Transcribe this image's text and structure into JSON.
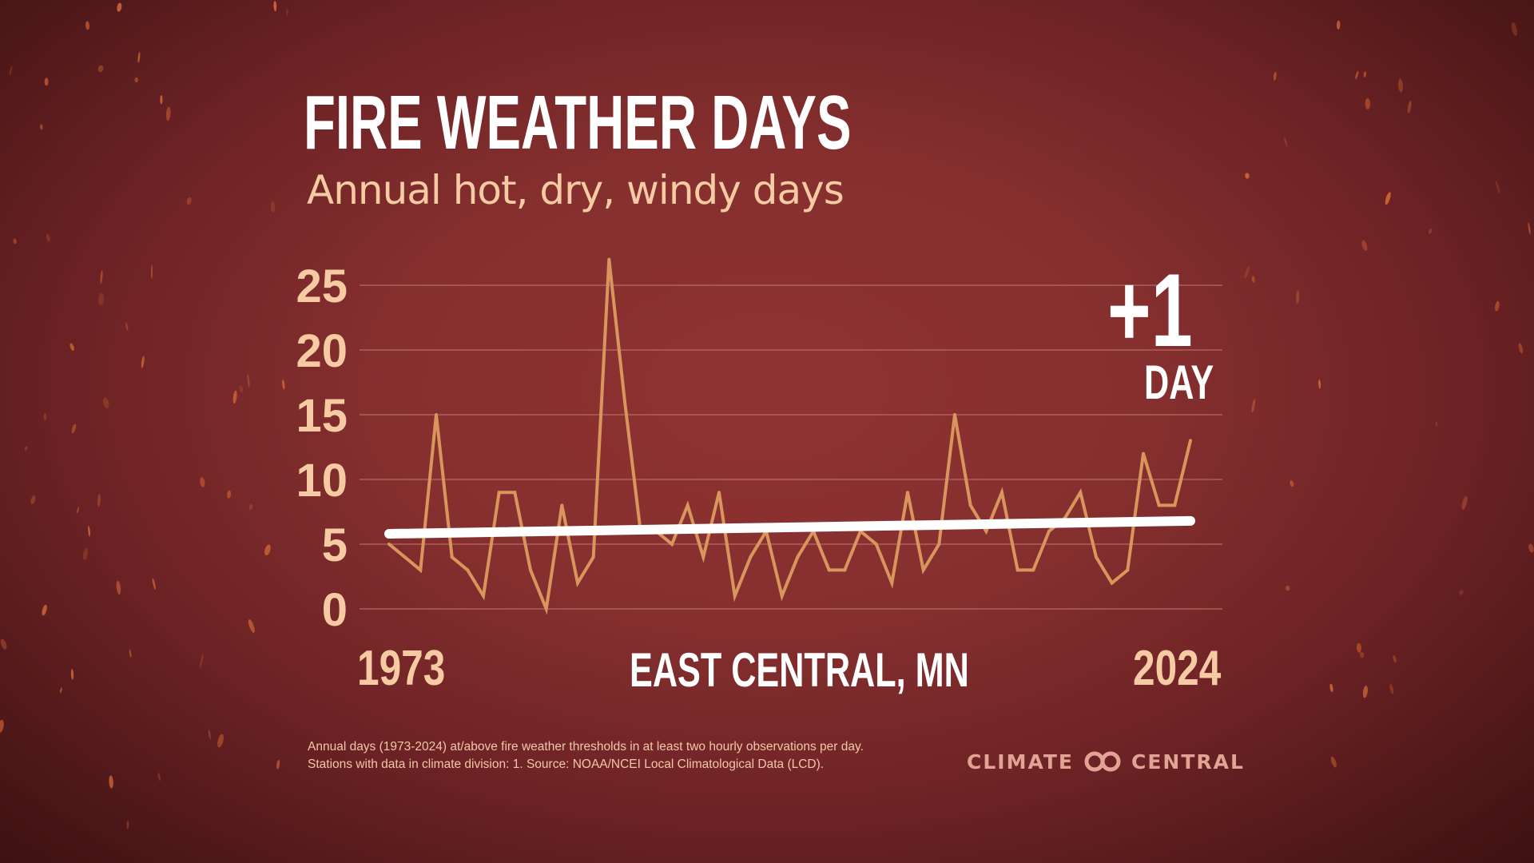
{
  "title": "FIRE WEATHER DAYS",
  "subtitle": "Annual hot, dry, windy days",
  "location": "EAST CENTRAL, MN",
  "change": {
    "value": "+1",
    "unit": "DAY"
  },
  "footnote": [
    "Annual days (1973-2024) at/above fire weather thresholds in at least two hourly observations per day.",
    "Stations with data in climate division: 1. Source: NOAA/NCEI Local Climatological Data (LCD)."
  ],
  "brand": {
    "left": "CLIMATE",
    "right": "CENTRAL",
    "logo_icon": "linked-rings-icon"
  },
  "colors": {
    "background": "#862f2f",
    "line": "#d9965c",
    "trend": "#ffffff",
    "tick_text": "#f6cba4",
    "grid": "#b86a66"
  },
  "chart_data": {
    "type": "line",
    "title": "FIRE WEATHER DAYS",
    "subtitle": "Annual hot, dry, windy days",
    "xlabel": "",
    "ylabel": "",
    "x_tick_labels": [
      "1973",
      "2024"
    ],
    "y_ticks": [
      0,
      5,
      10,
      15,
      20,
      25
    ],
    "ylim": [
      0,
      25
    ],
    "grid": "horizontal",
    "series": [
      {
        "x": [
          1973,
          1974,
          1975,
          1976,
          1977,
          1978,
          1979,
          1980,
          1981,
          1982,
          1983,
          1984,
          1985,
          1986,
          1987,
          1988,
          1989,
          1990,
          1991,
          1992,
          1993,
          1994,
          1995,
          1996,
          1997,
          1998,
          1999,
          2000,
          2001,
          2002,
          2003,
          2004,
          2005,
          2006,
          2007,
          2008,
          2009,
          2010,
          2011,
          2012,
          2013,
          2014,
          2015,
          2016,
          2017,
          2018,
          2019,
          2020,
          2021,
          2022,
          2023,
          2024
        ],
        "values": [
          5,
          4,
          3,
          15,
          4,
          3,
          1,
          9,
          9,
          3,
          0,
          8,
          2,
          4,
          27,
          16,
          6,
          6,
          5,
          8,
          4,
          9,
          1,
          4,
          6,
          1,
          4,
          6,
          3,
          3,
          6,
          5,
          2,
          9,
          3,
          5,
          15,
          8,
          6,
          9,
          3,
          3,
          6,
          7,
          9,
          4,
          2,
          3,
          12,
          8,
          8,
          13
        ]
      }
    ],
    "trend": {
      "label": "trend",
      "start_year": 1973,
      "start_value": 5.8,
      "end_year": 2024,
      "end_value": 6.8
    }
  }
}
